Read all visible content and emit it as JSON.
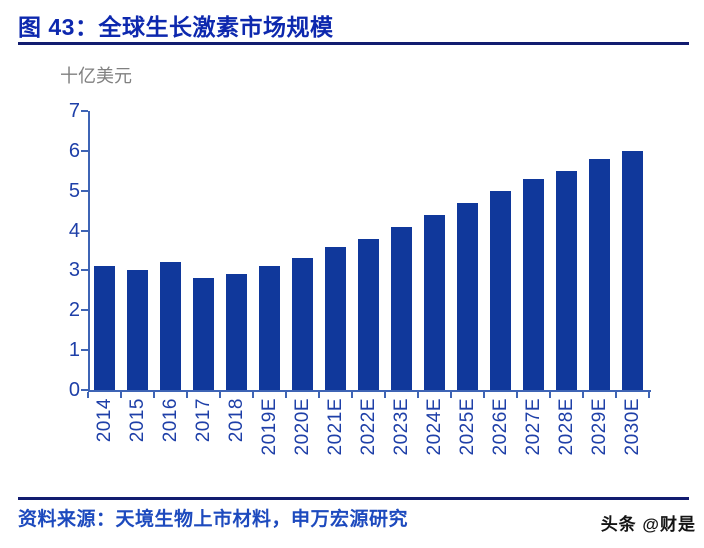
{
  "header": {
    "title": "图 43：全球生长激素市场规模"
  },
  "chart_data": {
    "type": "bar",
    "title": "全球生长激素市场规模",
    "unit_label": "十亿美元",
    "categories": [
      "2014",
      "2015",
      "2016",
      "2017",
      "2018",
      "2019E",
      "2020E",
      "2021E",
      "2022E",
      "2023E",
      "2024E",
      "2025E",
      "2026E",
      "2027E",
      "2028E",
      "2029E",
      "2030E"
    ],
    "values": [
      3.1,
      3.0,
      3.2,
      2.8,
      2.9,
      3.1,
      3.3,
      3.6,
      3.8,
      4.1,
      4.4,
      4.7,
      5.0,
      5.3,
      5.5,
      5.8,
      6.0
    ],
    "ylim": [
      0,
      7
    ],
    "yticks": [
      0,
      1,
      2,
      3,
      4,
      5,
      6,
      7
    ],
    "grid": false,
    "legend": "none",
    "colors": {
      "bar": "#10389B",
      "axis": "#3E64B5",
      "tick_label": "#1E3FA8",
      "unit_label": "#808080"
    }
  },
  "footer": {
    "source": "资料来源：天境生物上市材料，申万宏源研究",
    "watermark": "头条 @财是"
  },
  "colors": {
    "title": "#0D28AE",
    "rule": "#121C70",
    "source_text": "#1D4ABE",
    "watermark": "#151515",
    "background": "#FFFFFF"
  }
}
